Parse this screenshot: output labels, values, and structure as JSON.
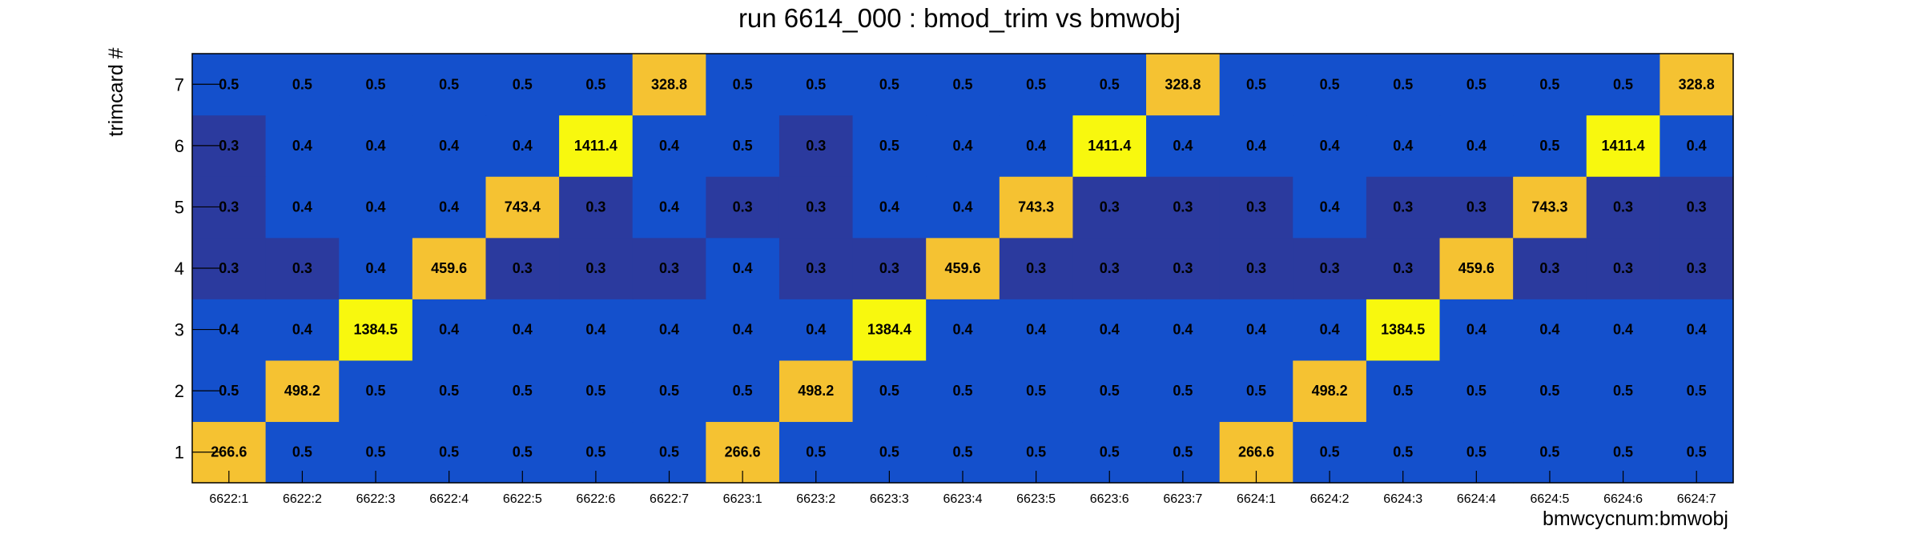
{
  "chart_data": {
    "type": "heatmap",
    "title": "run 6614_000 : bmod_trim vs bmwobj",
    "xlabel": "bmwcycnum:bmwobj",
    "ylabel": "trimcard #",
    "x_categories": [
      "6622:1",
      "6622:2",
      "6622:3",
      "6622:4",
      "6622:5",
      "6622:6",
      "6622:7",
      "6623:1",
      "6623:2",
      "6623:3",
      "6623:4",
      "6623:5",
      "6623:6",
      "6623:7",
      "6624:1",
      "6624:2",
      "6624:3",
      "6624:4",
      "6624:5",
      "6624:6",
      "6624:7"
    ],
    "y_categories": [
      "1",
      "2",
      "3",
      "4",
      "5",
      "6",
      "7"
    ],
    "values": [
      [
        266.6,
        0.5,
        0.5,
        0.5,
        0.5,
        0.5,
        0.5,
        266.6,
        0.5,
        0.5,
        0.5,
        0.5,
        0.5,
        0.5,
        266.6,
        0.5,
        0.5,
        0.5,
        0.5,
        0.5,
        0.5
      ],
      [
        0.5,
        498.2,
        0.5,
        0.5,
        0.5,
        0.5,
        0.5,
        0.5,
        498.2,
        0.5,
        0.5,
        0.5,
        0.5,
        0.5,
        0.5,
        498.2,
        0.5,
        0.5,
        0.5,
        0.5,
        0.5
      ],
      [
        0.4,
        0.4,
        1384.5,
        0.4,
        0.4,
        0.4,
        0.4,
        0.4,
        0.4,
        1384.4,
        0.4,
        0.4,
        0.4,
        0.4,
        0.4,
        0.4,
        1384.5,
        0.4,
        0.4,
        0.4,
        0.4
      ],
      [
        0.3,
        0.3,
        0.4,
        459.6,
        0.3,
        0.3,
        0.3,
        0.4,
        0.3,
        0.3,
        459.6,
        0.3,
        0.3,
        0.3,
        0.3,
        0.3,
        0.3,
        459.6,
        0.3,
        0.3,
        0.3
      ],
      [
        0.3,
        0.4,
        0.4,
        0.4,
        743.4,
        0.3,
        0.4,
        0.3,
        0.3,
        0.4,
        0.4,
        743.3,
        0.3,
        0.3,
        0.3,
        0.4,
        0.3,
        0.3,
        743.3,
        0.3,
        0.3
      ],
      [
        0.3,
        0.4,
        0.4,
        0.4,
        0.4,
        1411.4,
        0.4,
        0.5,
        0.3,
        0.5,
        0.4,
        0.4,
        1411.4,
        0.4,
        0.4,
        0.4,
        0.4,
        0.4,
        0.5,
        1411.4,
        0.4
      ],
      [
        0.5,
        0.5,
        0.5,
        0.5,
        0.5,
        0.5,
        328.8,
        0.5,
        0.5,
        0.5,
        0.5,
        0.5,
        0.5,
        328.8,
        0.5,
        0.5,
        0.5,
        0.5,
        0.5,
        0.5,
        328.8
      ]
    ],
    "colors": {
      "low_dark": "#2b3a9e",
      "low_mid": "#1450cc",
      "high_orange": "#f5c232",
      "high_yellow": "#f8f80e"
    },
    "grid": false
  }
}
